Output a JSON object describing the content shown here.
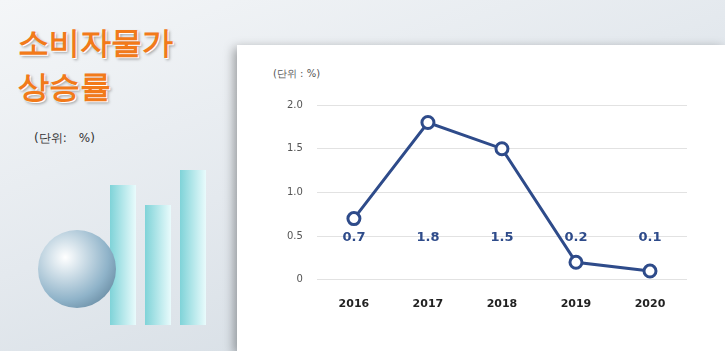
{
  "chart_data": {
    "type": "line",
    "title": "소비자물가 상승률",
    "subtitle": "(단위:　%)",
    "y_label": "(단위 : %)",
    "categories": [
      "2016",
      "2017",
      "2018",
      "2019",
      "2020"
    ],
    "values": [
      0.7,
      1.8,
      1.5,
      0.2,
      0.1
    ],
    "color": "#2e4b8a",
    "marker": "circle",
    "line_style": "solid",
    "ylim": [
      0,
      2.0
    ],
    "yticks": [
      0,
      {
        "value": 0.5,
        "label": "0.5"
      },
      {
        "value": 1.0,
        "label": "1.0"
      },
      {
        "value": 1.5,
        "label": "1.5"
      },
      {
        "value": 2.0,
        "label": "2.0"
      }
    ],
    "grid": true,
    "data_labels": true,
    "legend": false
  }
}
